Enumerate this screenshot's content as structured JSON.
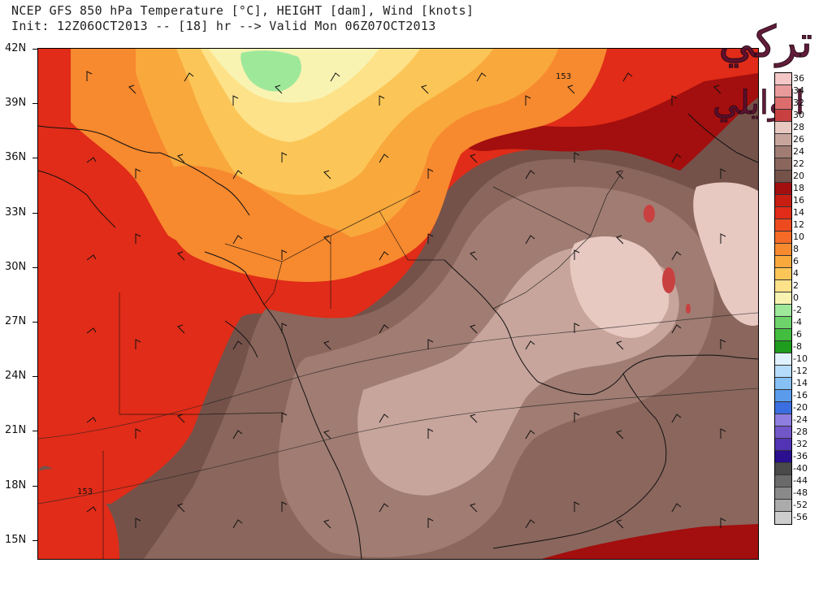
{
  "title": {
    "line1": "NCEP GFS 850 hPa Temperature [°C], HEIGHT [dam], Wind [knots]",
    "line2": "Init: 12Z06OCT2013 -- [18] hr --> Valid Mon 06Z07OCT2013"
  },
  "lat_labels": [
    "42N",
    "39N",
    "36N",
    "33N",
    "30N",
    "27N",
    "24N",
    "21N",
    "18N",
    "15N"
  ],
  "contour_labels": [
    "153",
    "153"
  ],
  "watermark_text": "تركي الوايلي",
  "legend": [
    {
      "label": "36",
      "color": "#f4c6c6"
    },
    {
      "label": "34",
      "color": "#e89b9b"
    },
    {
      "label": "32",
      "color": "#dd6d6d"
    },
    {
      "label": "30",
      "color": "#c94040"
    },
    {
      "label": "28",
      "color": "#e7c9c2"
    },
    {
      "label": "26",
      "color": "#c7a59c"
    },
    {
      "label": "24",
      "color": "#a07c72"
    },
    {
      "label": "22",
      "color": "#8a665c"
    },
    {
      "label": "20",
      "color": "#74524a"
    },
    {
      "label": "18",
      "color": "#a30e0e"
    },
    {
      "label": "16",
      "color": "#c81e12"
    },
    {
      "label": "14",
      "color": "#e02c18"
    },
    {
      "label": "12",
      "color": "#ee4a20"
    },
    {
      "label": "10",
      "color": "#f46a26"
    },
    {
      "label": "8",
      "color": "#f7892e"
    },
    {
      "label": "6",
      "color": "#f9a83c"
    },
    {
      "label": "4",
      "color": "#fbc657"
    },
    {
      "label": "2",
      "color": "#fde28a"
    },
    {
      "label": "0",
      "color": "#f9f3b2"
    },
    {
      "label": "-2",
      "color": "#9ee89a"
    },
    {
      "label": "-4",
      "color": "#6fd36b"
    },
    {
      "label": "-6",
      "color": "#43bd40"
    },
    {
      "label": "-8",
      "color": "#1e9c1e"
    },
    {
      "label": "-10",
      "color": "#e0f2ff"
    },
    {
      "label": "-12",
      "color": "#b5dcfb"
    },
    {
      "label": "-14",
      "color": "#86c0f4"
    },
    {
      "label": "-16",
      "color": "#5a9ceb"
    },
    {
      "label": "-20",
      "color": "#3b6ee0"
    },
    {
      "label": "-24",
      "color": "#8e7ee0"
    },
    {
      "label": "-28",
      "color": "#7257c9"
    },
    {
      "label": "-32",
      "color": "#5233b4"
    },
    {
      "label": "-36",
      "color": "#2a0f8f"
    },
    {
      "label": "-40",
      "color": "#4a4a4a"
    },
    {
      "label": "-44",
      "color": "#6a6a6a"
    },
    {
      "label": "-48",
      "color": "#8a8a8a"
    },
    {
      "label": "-52",
      "color": "#ababab"
    },
    {
      "label": "-56",
      "color": "#cdcdcd"
    }
  ]
}
